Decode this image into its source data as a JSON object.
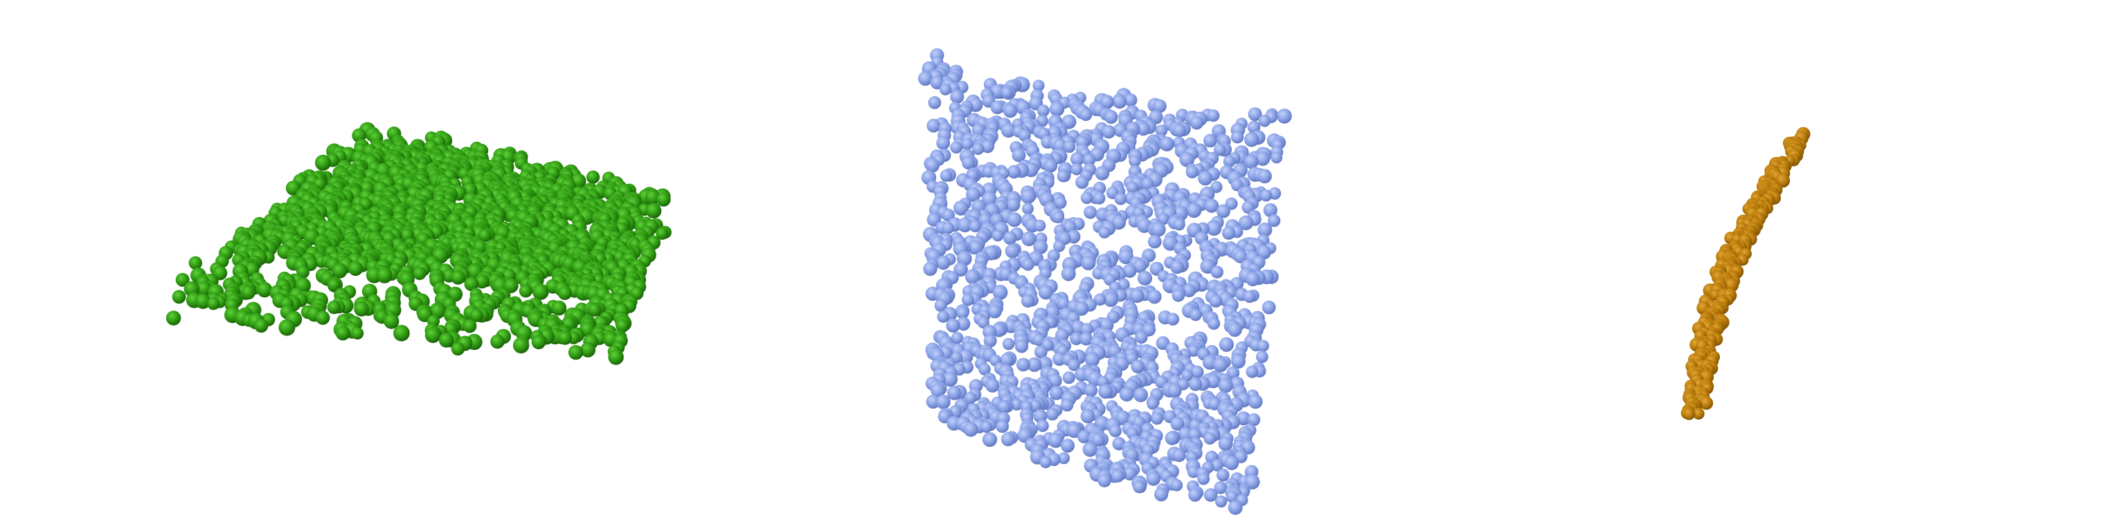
{
  "scene": {
    "background": "#ffffff",
    "objects": [
      {
        "name": "green-sheet",
        "shape": "slab-viewed-from-above",
        "color": "#2f9a12",
        "highlight": "#5fd23a",
        "shadow": "#175d05",
        "particle_count": 1500,
        "seed": 11
      },
      {
        "name": "blue-sheet",
        "shape": "upright-panel",
        "color": "#8aa2e6",
        "highlight": "#c3d1fb",
        "shadow": "#5d73bb",
        "particle_count": 1300,
        "seed": 23
      },
      {
        "name": "orange-strip",
        "shape": "thin-curved-strip",
        "color": "#b97a09",
        "highlight": "#e3a836",
        "shadow": "#7a4f03",
        "particle_count": 260,
        "seed": 37
      }
    ]
  }
}
